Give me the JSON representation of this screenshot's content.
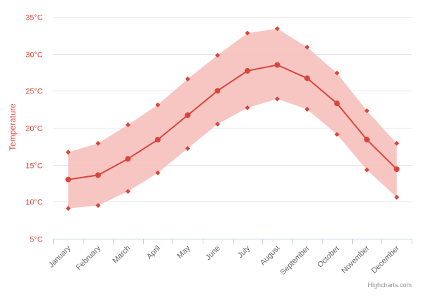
{
  "chart_data": {
    "type": "line",
    "title": "",
    "xlabel": "",
    "ylabel": "Temperature",
    "categories": [
      "January",
      "February",
      "March",
      "April",
      "May",
      "June",
      "July",
      "August",
      "September",
      "October",
      "November",
      "December"
    ],
    "series": [
      {
        "type": "arearange",
        "values_low": [
          9.1,
          9.5,
          11.4,
          13.9,
          17.2,
          20.5,
          22.7,
          23.9,
          22.5,
          19.1,
          14.3,
          10.6
        ],
        "values_high": [
          16.7,
          17.9,
          20.4,
          23.1,
          26.6,
          29.8,
          32.8,
          33.4,
          30.9,
          27.4,
          22.3,
          17.9
        ]
      },
      {
        "type": "line",
        "values": [
          13.0,
          13.6,
          15.8,
          18.4,
          21.7,
          25.0,
          27.7,
          28.5,
          26.7,
          23.3,
          18.4,
          14.4
        ]
      }
    ],
    "y_ticks": [
      "5°C",
      "10°C",
      "15°C",
      "20°C",
      "25°C",
      "30°C",
      "35°C"
    ],
    "y_tick_values": [
      5,
      10,
      15,
      20,
      25,
      30,
      35
    ],
    "ylim": [
      5,
      35
    ],
    "grid": true,
    "legend": "none"
  },
  "credits": "Highcharts.com",
  "colors": {
    "series": "#d9453a",
    "range_fill": "#f6c0bb",
    "grid": "#e6e6e6",
    "axis": "#c0d0e0"
  }
}
